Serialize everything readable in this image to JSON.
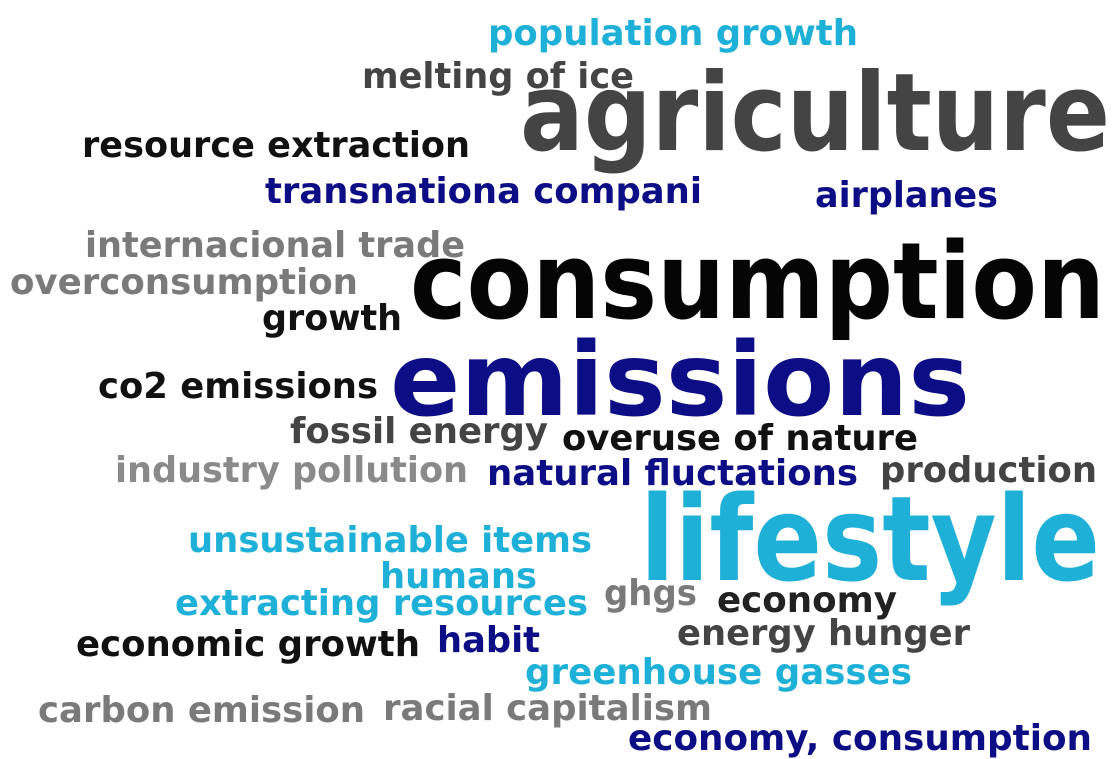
{
  "words": [
    {
      "text": "population growth",
      "color": "#1fb0d8"
    },
    {
      "text": "melting of ice",
      "color": "#444444"
    },
    {
      "text": "agriculture",
      "color": "#444444"
    },
    {
      "text": "resource extraction",
      "color": "#111111"
    },
    {
      "text": "transnationa compani",
      "color": "#0d0d85"
    },
    {
      "text": "airplanes",
      "color": "#0d0d85"
    },
    {
      "text": "internacional trade",
      "color": "#7a7a7a"
    },
    {
      "text": "overconsumption",
      "color": "#7a7a7a"
    },
    {
      "text": "consumption",
      "color": "#050505"
    },
    {
      "text": "growth",
      "color": "#111111"
    },
    {
      "text": "emissions",
      "color": "#0d0d85"
    },
    {
      "text": "co2 emissions",
      "color": "#111111"
    },
    {
      "text": "fossil energy",
      "color": "#444444"
    },
    {
      "text": "overuse of nature",
      "color": "#111111"
    },
    {
      "text": "industry pollution",
      "color": "#8a8a8a"
    },
    {
      "text": "natural fluctations",
      "color": "#0d0d85"
    },
    {
      "text": "production",
      "color": "#444444"
    },
    {
      "text": "lifestyle",
      "color": "#1fb0d8"
    },
    {
      "text": "unsustainable items",
      "color": "#1fb0d8"
    },
    {
      "text": "humans",
      "color": "#1fb0d8"
    },
    {
      "text": "extracting resources",
      "color": "#1fb0d8"
    },
    {
      "text": "ghgs",
      "color": "#7a7a7a"
    },
    {
      "text": "economy",
      "color": "#222222"
    },
    {
      "text": "energy hunger",
      "color": "#444444"
    },
    {
      "text": "economic growth",
      "color": "#111111"
    },
    {
      "text": "habit",
      "color": "#0d0d85"
    },
    {
      "text": "greenhouse gasses",
      "color": "#1fb0d8"
    },
    {
      "text": "carbon emission",
      "color": "#7a7a7a"
    },
    {
      "text": "racial capitalism",
      "color": "#7a7a7a"
    },
    {
      "text": "economy, consumption",
      "color": "#0d0d85"
    }
  ]
}
